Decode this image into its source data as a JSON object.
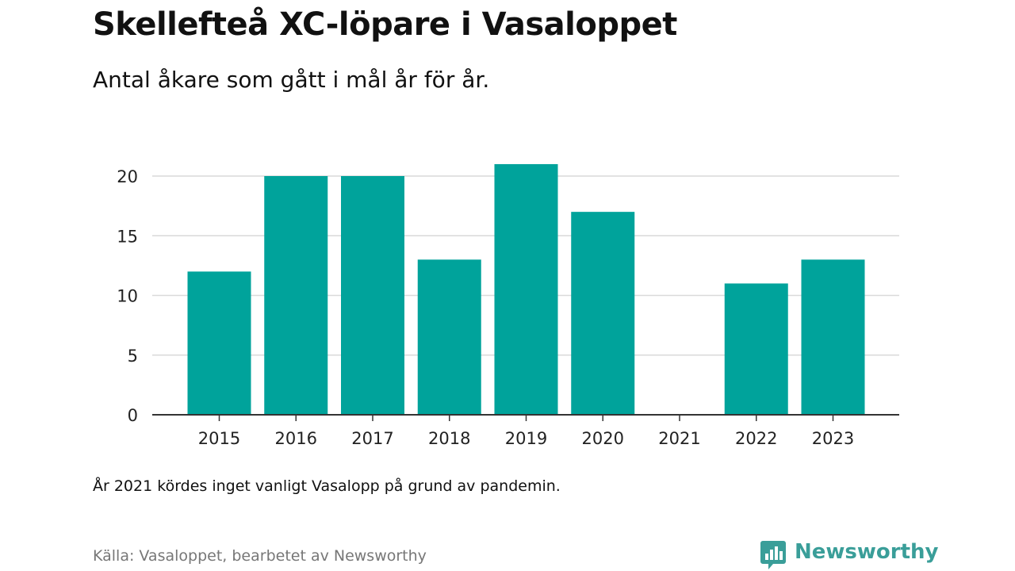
{
  "header": {
    "title": "Skellefteå XC-löpare i Vasaloppet",
    "subtitle": "Antal åkare som gått i mål år för år."
  },
  "footer": {
    "note": "År 2021 kördes inget vanligt Vasalopp på grund av pandemin.",
    "source": "Källa: Vasaloppet, bearbetet av Newsworthy",
    "brand": "Newsworthy",
    "brand_icon": "newsworthy-logo-icon"
  },
  "colors": {
    "bar": "#00a39b",
    "grid": "#d9d9d9",
    "axis": "#333333",
    "brand": "#3a9e99"
  },
  "chart_data": {
    "type": "bar",
    "categories": [
      "2015",
      "2016",
      "2017",
      "2018",
      "2019",
      "2020",
      "2021",
      "2022",
      "2023"
    ],
    "values": [
      12,
      20,
      20,
      13,
      21,
      17,
      null,
      11,
      13
    ],
    "title": "Skellefteå XC-löpare i Vasaloppet",
    "subtitle": "Antal åkare som gått i mål år för år.",
    "xlabel": "",
    "ylabel": "",
    "ylim": [
      0,
      20
    ],
    "yticks": [
      0,
      5,
      10,
      15,
      20
    ],
    "grid": true,
    "legend": "none"
  }
}
